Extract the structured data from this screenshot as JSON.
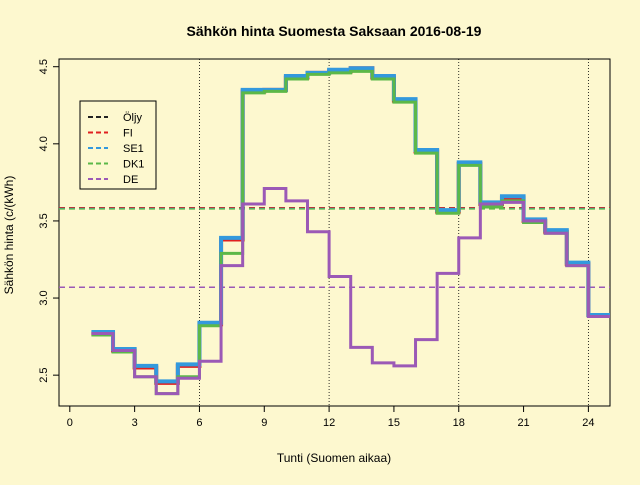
{
  "chart_data": {
    "type": "line",
    "step": true,
    "title": "Sähkön hinta Suomesta Saksaan 2016-08-19",
    "xlabel": "Tunti (Suomen aikaa)",
    "ylabel": "Sähkön hinta (c/(kWh)",
    "xlim": [
      -0.5,
      25
    ],
    "ylim": [
      2.3,
      4.55
    ],
    "xticks": [
      0,
      3,
      6,
      9,
      12,
      15,
      18,
      21,
      24
    ],
    "yticks": [
      2.5,
      3.0,
      3.5,
      4.0,
      4.5
    ],
    "xtick_labels": [
      "0",
      "3",
      "6",
      "9",
      "12",
      "15",
      "18",
      "21",
      "24"
    ],
    "ytick_labels": [
      "2.5",
      "3.0",
      "3.5",
      "4.0",
      "4.5"
    ],
    "vlines": [
      6,
      12,
      18,
      24
    ],
    "legend_position": "top-left",
    "hlines": [
      {
        "name": "Öljy",
        "value": 3.585,
        "color": "#222222"
      },
      {
        "name": "DE",
        "value": 3.07,
        "color": "#9b59b6"
      }
    ],
    "hours": [
      1,
      2,
      3,
      4,
      5,
      6,
      7,
      8,
      9,
      10,
      11,
      12,
      13,
      14,
      15,
      16,
      17,
      18,
      19,
      20,
      21,
      22,
      23,
      24,
      25
    ],
    "series": [
      {
        "name": "Öljy",
        "color": "#222222",
        "values": null,
        "hline": 3.585
      },
      {
        "name": "FI",
        "color": "#e02020",
        "hline": 3.585,
        "values": [
          2.77,
          2.66,
          2.55,
          2.45,
          2.56,
          2.83,
          3.38,
          4.34,
          4.35,
          4.43,
          4.46,
          4.47,
          4.49,
          4.43,
          4.28,
          3.95,
          3.56,
          3.87,
          3.61,
          3.65,
          3.5,
          3.43,
          3.22,
          2.89
        ]
      },
      {
        "name": "SE1",
        "color": "#3399dd",
        "values": [
          2.78,
          2.67,
          2.56,
          2.46,
          2.57,
          2.84,
          3.39,
          4.35,
          4.35,
          4.44,
          4.46,
          4.48,
          4.49,
          4.44,
          4.29,
          3.96,
          3.57,
          3.88,
          3.62,
          3.66,
          3.51,
          3.44,
          3.23,
          2.89
        ]
      },
      {
        "name": "DK1",
        "color": "#5cb848",
        "values": [
          2.76,
          2.65,
          2.49,
          2.38,
          2.49,
          2.82,
          3.29,
          4.33,
          4.34,
          4.42,
          4.45,
          4.46,
          4.47,
          4.42,
          4.27,
          3.94,
          3.55,
          3.86,
          3.59,
          3.63,
          3.49,
          3.42,
          3.21,
          2.88
        ]
      },
      {
        "name": "DE",
        "color": "#9b59b6",
        "values": [
          2.77,
          2.66,
          2.49,
          2.38,
          2.48,
          2.59,
          3.21,
          3.61,
          3.71,
          3.63,
          3.43,
          3.14,
          2.68,
          2.58,
          2.56,
          2.73,
          3.16,
          3.39,
          3.61,
          3.62,
          3.5,
          3.42,
          3.21,
          2.88
        ]
      }
    ],
    "dashed_levels": [
      {
        "name": "Öljy",
        "value": 3.585,
        "color": "#222222"
      },
      {
        "name": "FI",
        "value": 3.585,
        "color": "#e02020"
      },
      {
        "name": "SE1",
        "value": 3.58,
        "color": "#3399dd"
      },
      {
        "name": "DK1",
        "value": 3.578,
        "color": "#5cb848"
      },
      {
        "name": "DE",
        "value": 3.07,
        "color": "#9b59b6"
      }
    ],
    "legend": [
      {
        "name": "Öljy",
        "color": "#222222"
      },
      {
        "name": "FI",
        "color": "#e02020"
      },
      {
        "name": "SE1",
        "color": "#3399dd"
      },
      {
        "name": "DK1",
        "color": "#5cb848"
      },
      {
        "name": "DE",
        "color": "#9b59b6"
      }
    ]
  }
}
